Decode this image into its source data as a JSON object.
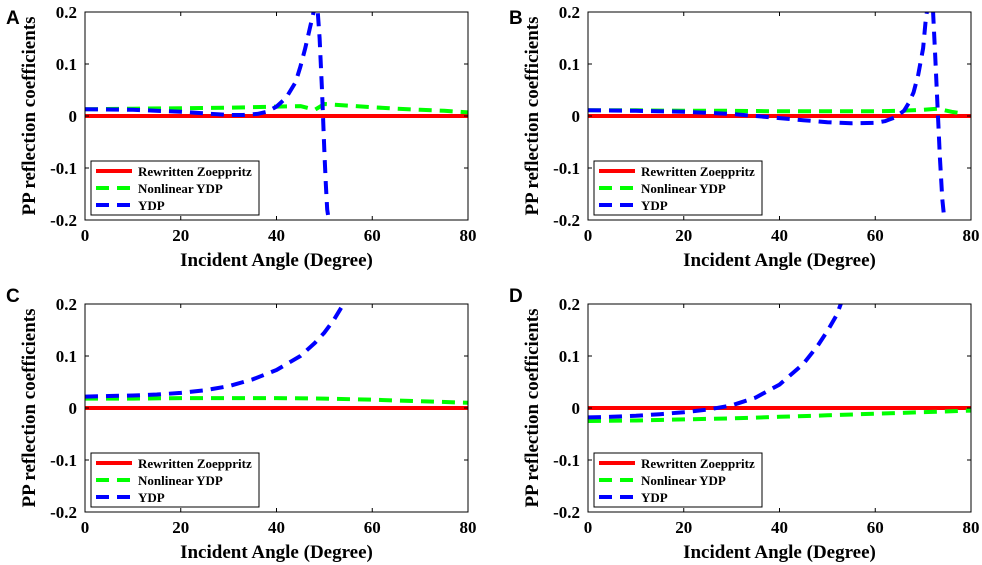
{
  "colors": {
    "rewritten": "#ff0000",
    "nonlinear": "#00ff00",
    "ydp": "#0000ff",
    "axis": "#000000"
  },
  "chart_data": [
    {
      "panel": "A",
      "type": "line",
      "xlabel": "Incident Angle (Degree)",
      "ylabel": "PP reflection coefficients",
      "xlim": [
        0,
        80
      ],
      "ylim": [
        -0.2,
        0.2
      ],
      "xticks": [
        0,
        20,
        40,
        60,
        80
      ],
      "yticks": [
        -0.2,
        -0.1,
        0,
        0.1,
        0.2
      ],
      "ytick_labels": [
        "-0.2",
        "-0.1",
        "0",
        "0.1",
        "0.2"
      ],
      "legend_position": "bottom-left",
      "series": [
        {
          "name": "Rewritten Zoeppritz",
          "style": "solid",
          "x": [
            0,
            80
          ],
          "y": [
            0,
            0
          ]
        },
        {
          "name": "Nonlinear YDP",
          "style": "dashed",
          "x": [
            0,
            10,
            20,
            30,
            40,
            45,
            48,
            50,
            55,
            60,
            65,
            70,
            75,
            80
          ],
          "y": [
            0.013,
            0.014,
            0.015,
            0.016,
            0.018,
            0.019,
            0.012,
            0.023,
            0.02,
            0.017,
            0.014,
            0.012,
            0.01,
            0.007
          ]
        },
        {
          "name": "YDP",
          "style": "dashed",
          "x": [
            0,
            10,
            20,
            25,
            30,
            33,
            36,
            38,
            40,
            42,
            44,
            45,
            46,
            47,
            48,
            48.5,
            49,
            49.5,
            50,
            50.3,
            50.6,
            51
          ],
          "y": [
            0.013,
            0.012,
            0.008,
            0.005,
            0.002,
            0.002,
            0.004,
            0.008,
            0.018,
            0.035,
            0.065,
            0.095,
            0.13,
            0.17,
            0.21,
            0.215,
            0.15,
            0.05,
            -0.07,
            -0.13,
            -0.18,
            -0.205
          ]
        }
      ]
    },
    {
      "panel": "B",
      "type": "line",
      "xlabel": "Incident Angle (Degree)",
      "ylabel": "PP reflection coefficients",
      "xlim": [
        0,
        80
      ],
      "ylim": [
        -0.2,
        0.2
      ],
      "xticks": [
        0,
        20,
        40,
        60,
        80
      ],
      "yticks": [
        -0.2,
        -0.1,
        0,
        0.1,
        0.2
      ],
      "ytick_labels": [
        "-0.2",
        "-0.1",
        "0",
        "0.1",
        "0.2"
      ],
      "legend_position": "bottom-left",
      "series": [
        {
          "name": "Rewritten Zoeppritz",
          "style": "solid",
          "x": [
            0,
            80
          ],
          "y": [
            0,
            0
          ]
        },
        {
          "name": "Nonlinear YDP",
          "style": "dashed",
          "x": [
            0,
            10,
            20,
            30,
            40,
            50,
            60,
            65,
            70,
            73,
            76,
            78
          ],
          "y": [
            0.011,
            0.011,
            0.01,
            0.01,
            0.009,
            0.009,
            0.009,
            0.01,
            0.012,
            0.014,
            0.008,
            0.005
          ]
        },
        {
          "name": "YDP",
          "style": "dashed",
          "x": [
            0,
            10,
            20,
            30,
            35,
            40,
            45,
            50,
            55,
            60,
            62,
            64,
            66,
            67,
            68,
            69,
            70,
            70.5,
            71,
            72,
            72.5,
            73,
            73.5,
            74,
            74.5
          ],
          "y": [
            0.011,
            0.01,
            0.008,
            0.004,
            0.0,
            -0.004,
            -0.008,
            -0.012,
            -0.014,
            -0.013,
            -0.01,
            -0.003,
            0.01,
            0.025,
            0.045,
            0.08,
            0.13,
            0.18,
            0.215,
            0.215,
            0.12,
            0.02,
            -0.08,
            -0.16,
            -0.205
          ]
        }
      ]
    },
    {
      "panel": "C",
      "type": "line",
      "xlabel": "Incident Angle (Degree)",
      "ylabel": "PP reflection coefficients",
      "xlim": [
        0,
        80
      ],
      "ylim": [
        -0.2,
        0.2
      ],
      "xticks": [
        0,
        20,
        40,
        60,
        80
      ],
      "yticks": [
        -0.2,
        -0.1,
        0,
        0.1,
        0.2
      ],
      "ytick_labels": [
        "-0.2",
        "-0.1",
        "0",
        "0.1",
        "0.2"
      ],
      "legend_position": "bottom-left",
      "series": [
        {
          "name": "Rewritten Zoeppritz",
          "style": "solid",
          "x": [
            0,
            80
          ],
          "y": [
            0,
            0
          ]
        },
        {
          "name": "Nonlinear YDP",
          "style": "dashed",
          "x": [
            0,
            10,
            20,
            30,
            40,
            50,
            60,
            70,
            80
          ],
          "y": [
            0.018,
            0.018,
            0.019,
            0.019,
            0.019,
            0.018,
            0.016,
            0.013,
            0.01
          ]
        },
        {
          "name": "YDP",
          "style": "dashed",
          "x": [
            0,
            5,
            10,
            15,
            20,
            25,
            30,
            35,
            40,
            45,
            48,
            50,
            52,
            54
          ],
          "y": [
            0.022,
            0.023,
            0.024,
            0.026,
            0.029,
            0.034,
            0.042,
            0.055,
            0.073,
            0.1,
            0.125,
            0.145,
            0.17,
            0.2
          ]
        }
      ]
    },
    {
      "panel": "D",
      "type": "line",
      "xlabel": "Incident Angle (Degree)",
      "ylabel": "PP reflection coefficients",
      "xlim": [
        0,
        80
      ],
      "ylim": [
        -0.2,
        0.2
      ],
      "xticks": [
        0,
        20,
        40,
        60,
        80
      ],
      "yticks": [
        -0.2,
        -0.1,
        0,
        0.1,
        0.2
      ],
      "ytick_labels": [
        "-0.2",
        "-0.1",
        "0",
        "0.1",
        "0.2"
      ],
      "legend_position": "bottom-left",
      "series": [
        {
          "name": "Rewritten Zoeppritz",
          "style": "solid",
          "x": [
            0,
            80
          ],
          "y": [
            0,
            0
          ]
        },
        {
          "name": "Nonlinear YDP",
          "style": "dashed",
          "x": [
            0,
            10,
            20,
            30,
            40,
            50,
            60,
            70,
            80
          ],
          "y": [
            -0.025,
            -0.024,
            -0.022,
            -0.02,
            -0.017,
            -0.014,
            -0.011,
            -0.008,
            -0.005
          ]
        },
        {
          "name": "YDP",
          "style": "dashed",
          "x": [
            0,
            5,
            10,
            15,
            20,
            25,
            30,
            35,
            40,
            45,
            48,
            50,
            52,
            53
          ],
          "y": [
            -0.018,
            -0.017,
            -0.015,
            -0.012,
            -0.008,
            -0.003,
            0.005,
            0.02,
            0.045,
            0.085,
            0.12,
            0.148,
            0.18,
            0.205
          ]
        }
      ]
    }
  ]
}
